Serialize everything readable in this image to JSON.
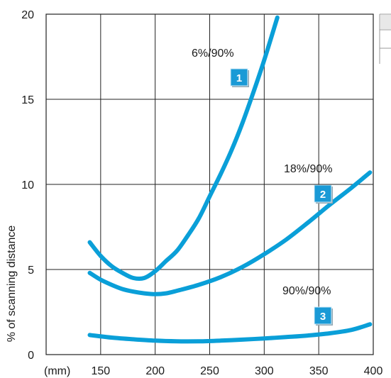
{
  "chart_data": {
    "type": "line",
    "x_unit_label": "(mm)",
    "ylabel": "% of scanning distance",
    "xlim": [
      100,
      400
    ],
    "ylim": [
      0,
      20
    ],
    "x_ticks": [
      150,
      200,
      250,
      300,
      350,
      400
    ],
    "y_ticks": [
      0,
      5,
      10,
      15,
      20
    ],
    "grid": true,
    "line_color": "#0a9fd8",
    "badge_color": "#1a9ad6",
    "series": [
      {
        "annotation": "6%/90%",
        "badge": "1",
        "points": [
          [
            140,
            6.6
          ],
          [
            150,
            5.8
          ],
          [
            160,
            5.2
          ],
          [
            170,
            4.8
          ],
          [
            180,
            4.5
          ],
          [
            190,
            4.5
          ],
          [
            200,
            4.9
          ],
          [
            210,
            5.5
          ],
          [
            220,
            6.1
          ],
          [
            230,
            7.0
          ],
          [
            240,
            8.0
          ],
          [
            250,
            9.3
          ],
          [
            260,
            10.6
          ],
          [
            270,
            12.0
          ],
          [
            280,
            13.6
          ],
          [
            290,
            15.4
          ],
          [
            300,
            17.3
          ],
          [
            312,
            19.8
          ]
        ]
      },
      {
        "annotation": "18%/90%",
        "badge": "2",
        "points": [
          [
            140,
            4.8
          ],
          [
            150,
            4.4
          ],
          [
            160,
            4.1
          ],
          [
            170,
            3.85
          ],
          [
            180,
            3.7
          ],
          [
            190,
            3.6
          ],
          [
            200,
            3.55
          ],
          [
            210,
            3.6
          ],
          [
            220,
            3.75
          ],
          [
            240,
            4.1
          ],
          [
            260,
            4.55
          ],
          [
            280,
            5.15
          ],
          [
            300,
            5.9
          ],
          [
            320,
            6.75
          ],
          [
            340,
            7.75
          ],
          [
            360,
            8.8
          ],
          [
            380,
            9.8
          ],
          [
            397,
            10.7
          ]
        ]
      },
      {
        "annotation": "90%/90%",
        "badge": "3",
        "points": [
          [
            140,
            1.15
          ],
          [
            160,
            1.0
          ],
          [
            180,
            0.9
          ],
          [
            200,
            0.82
          ],
          [
            220,
            0.78
          ],
          [
            240,
            0.78
          ],
          [
            260,
            0.82
          ],
          [
            280,
            0.88
          ],
          [
            300,
            0.95
          ],
          [
            320,
            1.03
          ],
          [
            340,
            1.12
          ],
          [
            360,
            1.25
          ],
          [
            380,
            1.45
          ],
          [
            397,
            1.78
          ]
        ]
      }
    ]
  }
}
